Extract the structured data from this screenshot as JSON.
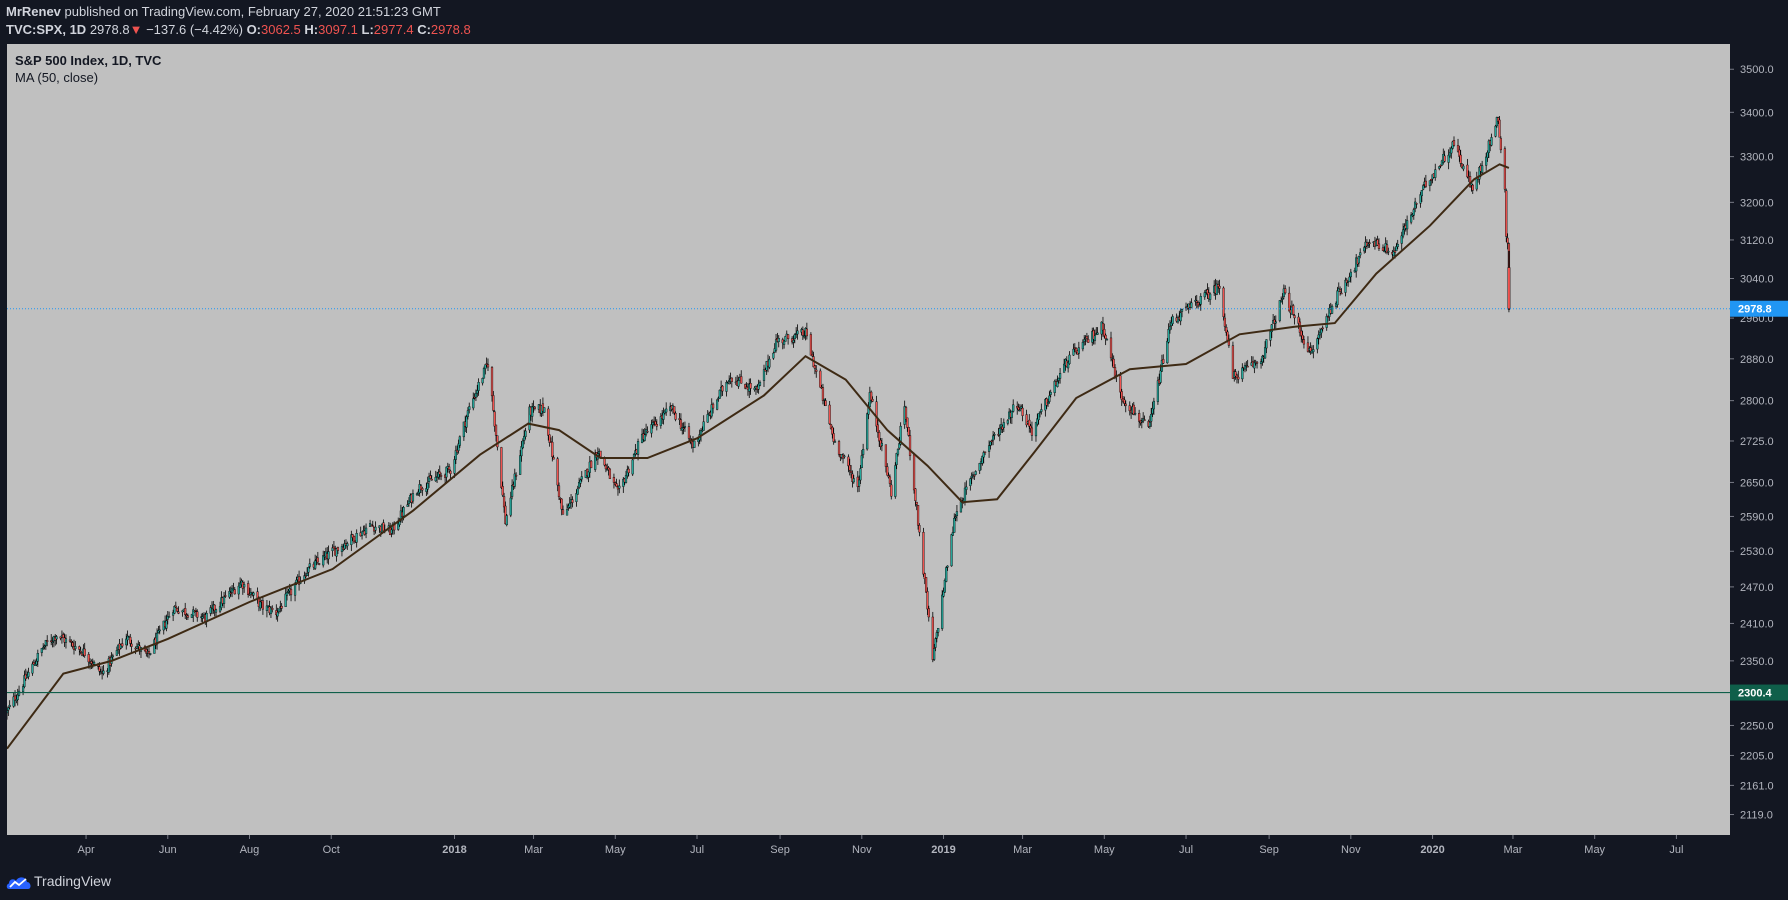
{
  "header": {
    "author": "MrRenev",
    "published": "published on TradingView.com, February 27, 2020 21:51:23 GMT",
    "symbol": "TVC:SPX, 1D",
    "last": "2978.8",
    "down_arrow": "▼",
    "change": "−137.6 (−4.42%)",
    "o_label": "O:",
    "o_value": "3062.5",
    "h_label": "H:",
    "h_value": "3097.1",
    "l_label": "L:",
    "l_value": "2977.4",
    "c_label": "C:",
    "c_value": "2978.8"
  },
  "legend": {
    "title": "S&P 500 Index, 1D, TVC",
    "indicator": "MA (50, close)"
  },
  "footer": {
    "brand": "TradingView",
    "logo_icon": "tradingview-cloud-icon"
  },
  "colors": {
    "background": "#c0c0c0",
    "panel": "#131722",
    "up_candle": "#26a69a",
    "down_candle": "#ef5350",
    "wick": "#000000",
    "ma_line": "#3e2a14",
    "last_price_line": "#2196f3",
    "support_line": "#0f5f4a"
  },
  "chart_data": {
    "type": "candlestick",
    "title": "S&P 500 Index, 1D, TVC",
    "y_ticks": [
      "3500.0",
      "3400.0",
      "3300.0",
      "3200.0",
      "3120.0",
      "3040.0",
      "2960.0",
      "2880.0",
      "2800.0",
      "2725.0",
      "2650.0",
      "2590.0",
      "2530.0",
      "2470.0",
      "2410.0",
      "2350.0",
      "2300.0",
      "2250.0",
      "2205.0",
      "2161.0",
      "2119.0"
    ],
    "x_ticks": [
      "Apr",
      "Jun",
      "Aug",
      "Oct",
      "2018",
      "Mar",
      "May",
      "Jul",
      "Sep",
      "Nov",
      "2019",
      "Mar",
      "May",
      "Jul",
      "Sep",
      "Nov",
      "2020",
      "Mar",
      "May",
      "Jul"
    ],
    "x_ticks_bold": [
      "2018",
      "2019",
      "2020"
    ],
    "y_scale": "log",
    "ylim": [
      2090,
      3560
    ],
    "xlim": [
      "2017-02-01",
      "2020-08-10"
    ],
    "price_series": [
      [
        "2017-02-01",
        2270
      ],
      [
        "2017-02-28",
        2372
      ],
      [
        "2017-03-10",
        2392
      ],
      [
        "2017-03-31",
        2363
      ],
      [
        "2017-04-13",
        2329
      ],
      [
        "2017-05-01",
        2388
      ],
      [
        "2017-05-17",
        2357
      ],
      [
        "2017-06-05",
        2436
      ],
      [
        "2017-06-29",
        2419
      ],
      [
        "2017-07-26",
        2478
      ],
      [
        "2017-08-10",
        2438
      ],
      [
        "2017-08-21",
        2428
      ],
      [
        "2017-09-12",
        2496
      ],
      [
        "2017-10-02",
        2529
      ],
      [
        "2017-10-31",
        2575
      ],
      [
        "2017-11-15",
        2564
      ],
      [
        "2017-12-04",
        2639
      ],
      [
        "2017-12-29",
        2673
      ],
      [
        "2018-01-12",
        2786
      ],
      [
        "2018-01-26",
        2872
      ],
      [
        "2018-02-08",
        2581
      ],
      [
        "2018-02-26",
        2779
      ],
      [
        "2018-03-09",
        2786
      ],
      [
        "2018-03-23",
        2588
      ],
      [
        "2018-04-18",
        2708
      ],
      [
        "2018-05-03",
        2629
      ],
      [
        "2018-05-21",
        2733
      ],
      [
        "2018-06-12",
        2786
      ],
      [
        "2018-06-28",
        2716
      ],
      [
        "2018-07-25",
        2846
      ],
      [
        "2018-08-15",
        2818
      ],
      [
        "2018-08-29",
        2914
      ],
      [
        "2018-09-20",
        2930
      ],
      [
        "2018-10-11",
        2728
      ],
      [
        "2018-10-29",
        2641
      ],
      [
        "2018-11-07",
        2813
      ],
      [
        "2018-11-23",
        2633
      ],
      [
        "2018-12-03",
        2790
      ],
      [
        "2018-12-24",
        2351
      ],
      [
        "2019-01-10",
        2596
      ],
      [
        "2019-02-01",
        2707
      ],
      [
        "2019-02-25",
        2796
      ],
      [
        "2019-03-08",
        2743
      ],
      [
        "2019-04-04",
        2879
      ],
      [
        "2019-04-30",
        2945
      ],
      [
        "2019-05-13",
        2811
      ],
      [
        "2019-06-03",
        2744
      ],
      [
        "2019-06-20",
        2954
      ],
      [
        "2019-07-26",
        3025
      ],
      [
        "2019-08-05",
        2844
      ],
      [
        "2019-08-26",
        2878
      ],
      [
        "2019-09-12",
        3009
      ],
      [
        "2019-10-02",
        2887
      ],
      [
        "2019-10-18",
        2986
      ],
      [
        "2019-11-15",
        3120
      ],
      [
        "2019-12-03",
        3093
      ],
      [
        "2019-12-27",
        3240
      ],
      [
        "2020-01-17",
        3330
      ],
      [
        "2020-01-31",
        3225
      ],
      [
        "2020-02-19",
        3386
      ],
      [
        "2020-02-24",
        3226
      ],
      [
        "2020-02-25",
        3128
      ],
      [
        "2020-02-26",
        3116
      ],
      [
        "2020-02-27",
        2978.8
      ]
    ],
    "ma50_series": [
      [
        "2017-02-01",
        2215
      ],
      [
        "2017-03-15",
        2330
      ],
      [
        "2017-04-20",
        2350
      ],
      [
        "2017-06-01",
        2385
      ],
      [
        "2017-08-01",
        2445
      ],
      [
        "2017-10-02",
        2500
      ],
      [
        "2017-12-01",
        2600
      ],
      [
        "2018-01-20",
        2700
      ],
      [
        "2018-02-25",
        2757
      ],
      [
        "2018-03-20",
        2745
      ],
      [
        "2018-04-20",
        2694
      ],
      [
        "2018-05-25",
        2694
      ],
      [
        "2018-07-01",
        2730
      ],
      [
        "2018-08-20",
        2810
      ],
      [
        "2018-09-20",
        2885
      ],
      [
        "2018-10-20",
        2840
      ],
      [
        "2018-11-20",
        2745
      ],
      [
        "2018-12-20",
        2680
      ],
      [
        "2019-01-15",
        2615
      ],
      [
        "2019-02-10",
        2620
      ],
      [
        "2019-03-10",
        2705
      ],
      [
        "2019-04-10",
        2805
      ],
      [
        "2019-05-20",
        2860
      ],
      [
        "2019-07-01",
        2870
      ],
      [
        "2019-08-10",
        2928
      ],
      [
        "2019-09-20",
        2943
      ],
      [
        "2019-10-20",
        2950
      ],
      [
        "2019-11-20",
        3050
      ],
      [
        "2019-12-30",
        3150
      ],
      [
        "2020-02-01",
        3250
      ],
      [
        "2020-02-20",
        3283
      ],
      [
        "2020-02-27",
        3275
      ]
    ],
    "last_price": 2978.8,
    "support_level": 2300.4
  }
}
